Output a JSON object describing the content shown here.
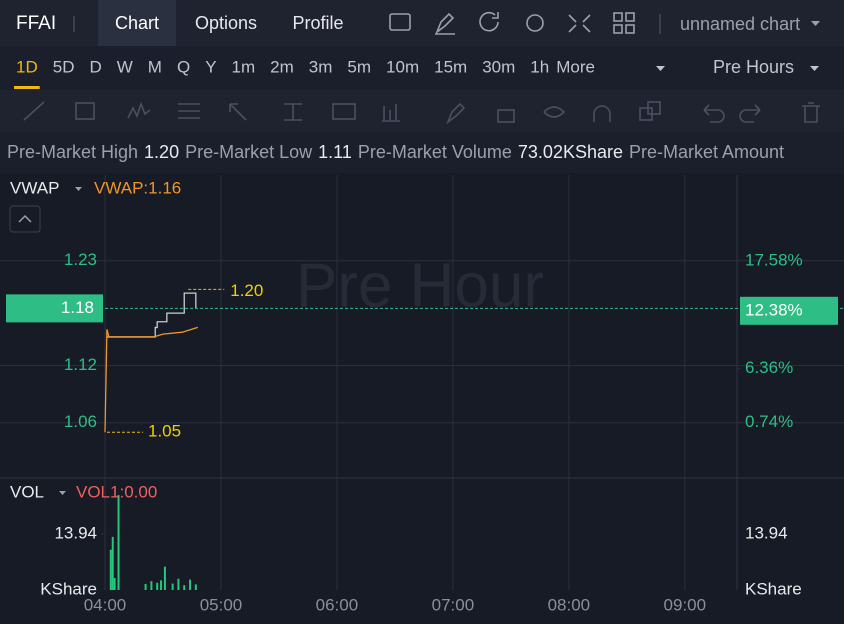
{
  "header": {
    "symbol": "FFAI",
    "tabs": [
      "Chart",
      "Options",
      "Profile"
    ],
    "chart_name": "unnamed chart"
  },
  "intervals": [
    "1D",
    "5D",
    "D",
    "W",
    "M",
    "Q",
    "Y",
    "1m",
    "2m",
    "3m",
    "5m",
    "10m",
    "15m",
    "30m",
    "1h"
  ],
  "more": "More",
  "session": "Pre Hours",
  "info": [
    {
      "label": "Pre-Market High",
      "value": "1.20"
    },
    {
      "label": "Pre-Market Low",
      "value": "1.11"
    },
    {
      "label": "Pre-Market Volume",
      "value": "73.02KShare"
    },
    {
      "label": "Pre-Market Amount"
    }
  ],
  "chart_data": [
    {
      "type": "line",
      "watermark": "Pre Hour",
      "legend": {
        "name": "VWAP",
        "value_label": "VWAP:1.16"
      },
      "xlim": [
        "04:00",
        "09:27"
      ],
      "xticks": [
        "04:00",
        "05:00",
        "06:00",
        "07:00",
        "08:00",
        "09:00"
      ],
      "ylim": [
        1.003,
        1.32
      ],
      "yticks": [
        1.23,
        1.12,
        1.06
      ],
      "y2lim": [
        -4.9,
        26.5
      ],
      "y2ticks": [
        {
          "value": 17.58,
          "label": "17.58%"
        },
        {
          "value": 6.36,
          "label": "6.36%"
        },
        {
          "value": 0.74,
          "label": "0.74%"
        }
      ],
      "current": {
        "value": 1.18,
        "change": {
          "value": 12.38,
          "label": "12.38%"
        },
        "color": "#2ebd85"
      },
      "high": {
        "value": 1.2,
        "label": "1.20"
      },
      "low": 1.05,
      "grid": true,
      "series": [
        {
          "color": "#c9ccd3",
          "x": [
            "04:01",
            "04:25",
            "04:26",
            "04:27",
            "04:31",
            "04:32",
            "04:40",
            "04:41",
            "04:44",
            "04:47"
          ],
          "values": [
            1.15,
            1.15,
            1.16,
            1.166,
            1.166,
            1.175,
            1.175,
            1.196,
            1.196,
            1.18
          ]
        },
        {
          "name": "VWAP",
          "color": "#f0962a",
          "x": [
            "04:00",
            "04:01",
            "04:02",
            "04:25",
            "04:30",
            "04:40",
            "04:48"
          ],
          "values": [
            1.05,
            1.158,
            1.15,
            1.15,
            1.153,
            1.155,
            1.16
          ]
        }
      ]
    },
    {
      "type": "bar",
      "legend": {
        "name": "VOL",
        "value_label": "VOL1:0.00"
      },
      "unit": "KShare",
      "ylim": [
        0,
        27.6
      ],
      "yticks": [
        13.94
      ],
      "color": "#22c97c",
      "x": [
        "04:03",
        "04:04",
        "04:05",
        "04:07",
        "04:21",
        "04:24",
        "04:27",
        "04:29",
        "04:31",
        "04:35",
        "04:38",
        "04:41",
        "04:44",
        "04:47"
      ],
      "values": [
        10,
        13.2,
        3,
        23.6,
        1.5,
        2.2,
        1.8,
        2.4,
        5.8,
        1.6,
        2.8,
        1.2,
        2.6,
        1.4
      ]
    }
  ]
}
